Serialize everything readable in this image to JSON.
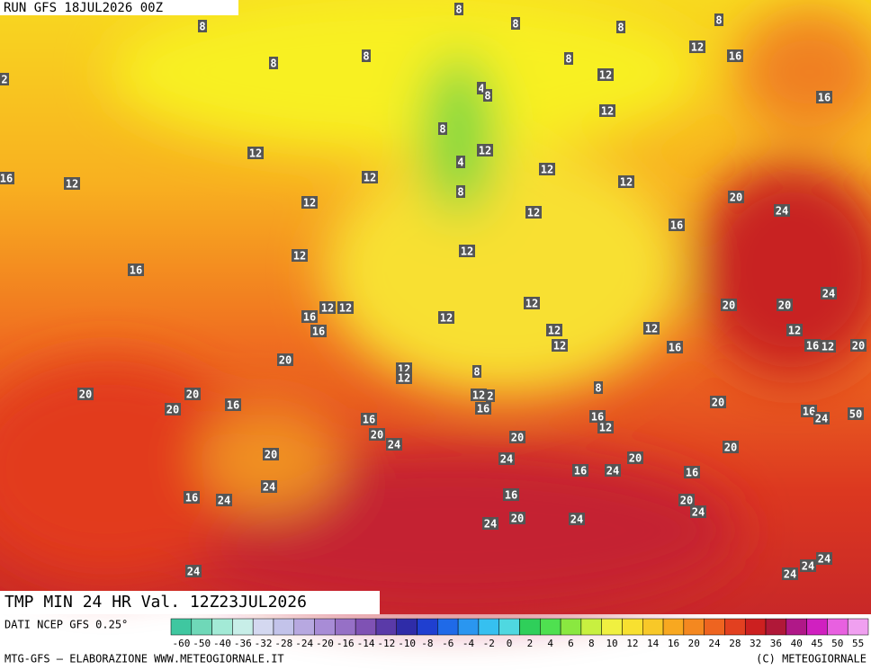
{
  "header": {
    "run": "RUN GFS 18JUL2026 00Z",
    "title": "TMP MIN 24 HR Val. 12Z23JUL2026"
  },
  "map_labels": [
    8,
    8,
    8,
    8,
    8,
    12,
    16,
    8,
    8,
    8,
    12,
    2,
    4,
    8,
    12,
    16,
    8,
    12,
    12,
    4,
    12,
    12,
    16,
    12,
    12,
    8,
    20,
    12,
    12,
    24,
    16,
    12,
    12,
    16,
    24,
    12,
    20,
    20,
    12,
    12,
    16,
    12,
    12,
    12,
    16,
    12,
    12,
    16,
    16,
    12,
    20,
    20,
    12,
    8,
    12,
    20,
    20,
    12,
    2,
    8,
    20,
    16,
    20,
    16,
    16,
    24,
    50,
    16,
    12,
    16,
    20,
    24,
    20,
    20,
    20,
    20,
    24,
    16,
    24,
    16,
    24,
    16,
    16,
    24,
    20,
    24,
    20,
    24,
    24,
    24,
    24,
    24,
    24
  ],
  "legend": {
    "source": "DATI NCEP GFS 0.25°",
    "labels": [
      -60,
      -50,
      -40,
      -36,
      -32,
      -28,
      -24,
      -20,
      -16,
      -14,
      -12,
      -10,
      -8,
      -6,
      -4,
      -2,
      0,
      2,
      4,
      6,
      8,
      10,
      12,
      14,
      16,
      20,
      24,
      28,
      32,
      36,
      40,
      45,
      50,
      55
    ],
    "colors": [
      "#3fc7a0",
      "#6fd8b8",
      "#a3ead6",
      "#c8eee8",
      "#d4d8f0",
      "#c3c3ea",
      "#b7a8e0",
      "#a88cd6",
      "#9670c6",
      "#7f52b4",
      "#5a3aa8",
      "#2f2ca8",
      "#1f3fd0",
      "#1f6ae8",
      "#2a96f0",
      "#36c0f0",
      "#4fd8e0",
      "#2fcf5a",
      "#4fe050",
      "#8ae840",
      "#c8f040",
      "#f0f040",
      "#f8e030",
      "#f8c828",
      "#f8a820",
      "#f48820",
      "#ee6420",
      "#e24020",
      "#cc2020",
      "#b01838",
      "#b01888",
      "#d020c0",
      "#e860e0",
      "#f0a0f0"
    ]
  },
  "footer": {
    "left": "MTG-GFS — ELABORAZIONE WWW.METEOGIORNALE.IT",
    "right": "(C) METEOGIORNALE"
  }
}
